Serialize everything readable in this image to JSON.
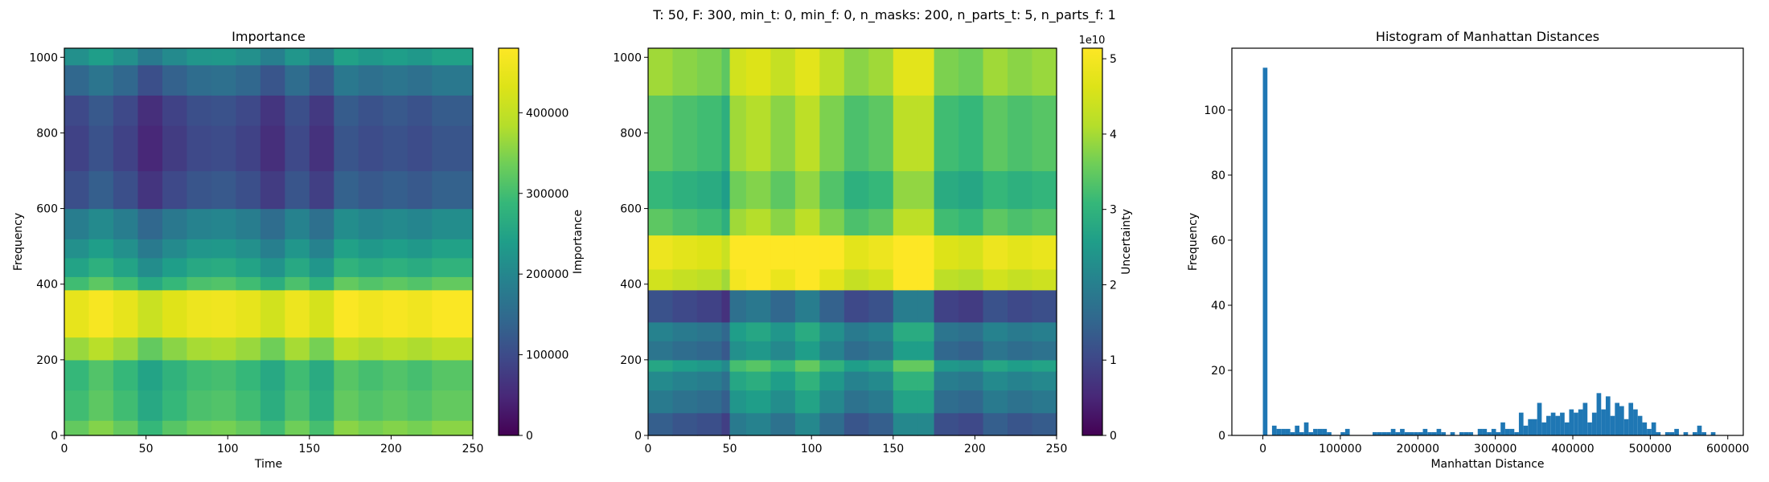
{
  "suptitle": "T: 50, F: 300, min_t: 0, min_f: 0, n_masks: 200, n_parts_t: 5, n_parts_f: 1",
  "chart_data": [
    {
      "type": "heatmap",
      "title": "Importance",
      "xlabel": "Time",
      "ylabel": "Frequency",
      "xlim": [
        0,
        250
      ],
      "ylim": [
        0,
        1024
      ],
      "xticks": [
        0,
        50,
        100,
        150,
        200,
        250
      ],
      "yticks": [
        0,
        200,
        400,
        600,
        800,
        1000
      ],
      "colormap": "viridis",
      "colorbar": {
        "label": "Importance",
        "range": [
          0,
          480000
        ],
        "ticks": [
          0,
          100000,
          200000,
          300000,
          400000
        ],
        "tick_labels": [
          "0",
          "100000",
          "200000",
          "300000",
          "400000"
        ]
      },
      "time_bins": [
        0,
        15,
        30,
        45,
        60,
        75,
        90,
        105,
        120,
        135,
        150,
        165,
        180,
        195,
        210,
        225,
        250
      ],
      "frequency_bands": [
        {
          "f": [
            0,
            40
          ],
          "base": 0.68
        },
        {
          "f": [
            40,
            120
          ],
          "base": 0.62
        },
        {
          "f": [
            120,
            200
          ],
          "base": 0.6
        },
        {
          "f": [
            200,
            260
          ],
          "base": 0.76
        },
        {
          "f": [
            260,
            385
          ],
          "base": 0.93
        },
        {
          "f": [
            385,
            420
          ],
          "base": 0.62
        },
        {
          "f": [
            420,
            470
          ],
          "base": 0.52
        },
        {
          "f": [
            470,
            520
          ],
          "base": 0.45
        },
        {
          "f": [
            520,
            600
          ],
          "base": 0.38
        },
        {
          "f": [
            600,
            700
          ],
          "base": 0.22
        },
        {
          "f": [
            700,
            820
          ],
          "base": 0.18
        },
        {
          "f": [
            820,
            900
          ],
          "base": 0.2
        },
        {
          "f": [
            900,
            980
          ],
          "base": 0.3
        },
        {
          "f": [
            980,
            1024
          ],
          "base": 0.45
        }
      ],
      "time_modulation": [
        0.0,
        0.05,
        0.0,
        -0.08,
        -0.02,
        0.02,
        0.03,
        0.0,
        -0.06,
        0.02,
        -0.05,
        0.06,
        0.03,
        0.05,
        0.03,
        0.06,
        0.03
      ]
    },
    {
      "type": "heatmap",
      "title": "",
      "xlabel": "",
      "ylabel": "",
      "xlim": [
        0,
        250
      ],
      "ylim": [
        0,
        1024
      ],
      "xticks": [
        0,
        50,
        100,
        150,
        200,
        250
      ],
      "yticks": [
        0,
        200,
        400,
        600,
        800,
        1000
      ],
      "colormap": "viridis",
      "colorbar": {
        "label": "Uncertainty",
        "range": [
          0,
          51400000000
        ],
        "ticks": [
          0,
          1,
          2,
          3,
          4,
          5
        ],
        "tick_labels": [
          "0",
          "1",
          "2",
          "3",
          "4",
          "5"
        ],
        "offset_text": "1e10"
      },
      "time_bins": [
        0,
        15,
        30,
        45,
        50,
        60,
        75,
        90,
        105,
        120,
        135,
        150,
        165,
        175,
        190,
        205,
        220,
        235,
        250
      ],
      "frequency_bands": [
        {
          "f": [
            0,
            60
          ],
          "base": 0.22
        },
        {
          "f": [
            60,
            120
          ],
          "base": 0.32
        },
        {
          "f": [
            120,
            170
          ],
          "base": 0.38
        },
        {
          "f": [
            170,
            200
          ],
          "base": 0.48
        },
        {
          "f": [
            200,
            250
          ],
          "base": 0.3
        },
        {
          "f": [
            250,
            300
          ],
          "base": 0.35
        },
        {
          "f": [
            300,
            385
          ],
          "base": 0.18
        },
        {
          "f": [
            385,
            440
          ],
          "base": 0.82
        },
        {
          "f": [
            440,
            530
          ],
          "base": 0.9
        },
        {
          "f": [
            530,
            600
          ],
          "base": 0.62
        },
        {
          "f": [
            600,
            700
          ],
          "base": 0.55
        },
        {
          "f": [
            700,
            900
          ],
          "base": 0.62
        },
        {
          "f": [
            900,
            1024
          ],
          "base": 0.72
        }
      ],
      "time_modulation": [
        0.05,
        0.02,
        0.0,
        -0.05,
        0.15,
        0.18,
        0.12,
        0.2,
        0.1,
        0.02,
        0.05,
        0.2,
        0.2,
        0.0,
        -0.02,
        0.05,
        0.02,
        0.04,
        0.0
      ]
    },
    {
      "type": "bar",
      "title": "Histogram of Manhattan Distances",
      "xlabel": "Manhattan Distance",
      "ylabel": "Frequency",
      "xlim": [
        -40000,
        620000
      ],
      "ylim": [
        0,
        119
      ],
      "xticks": [
        0,
        100000,
        200000,
        300000,
        400000,
        500000,
        600000
      ],
      "yticks": [
        0,
        20,
        40,
        60,
        80,
        100
      ],
      "bin_width": 5900,
      "color": "#1f77b4",
      "bins": [
        {
          "x": 0,
          "count": 113
        },
        {
          "x": 11800,
          "count": 3
        },
        {
          "x": 17700,
          "count": 2
        },
        {
          "x": 23600,
          "count": 2
        },
        {
          "x": 29500,
          "count": 2
        },
        {
          "x": 35400,
          "count": 1
        },
        {
          "x": 41300,
          "count": 3
        },
        {
          "x": 47200,
          "count": 1
        },
        {
          "x": 53100,
          "count": 4
        },
        {
          "x": 59000,
          "count": 1
        },
        {
          "x": 64900,
          "count": 2
        },
        {
          "x": 70800,
          "count": 2
        },
        {
          "x": 76700,
          "count": 2
        },
        {
          "x": 82600,
          "count": 1
        },
        {
          "x": 100300,
          "count": 1
        },
        {
          "x": 106200,
          "count": 2
        },
        {
          "x": 141600,
          "count": 1
        },
        {
          "x": 147500,
          "count": 1
        },
        {
          "x": 153400,
          "count": 1
        },
        {
          "x": 159300,
          "count": 1
        },
        {
          "x": 165200,
          "count": 2
        },
        {
          "x": 171100,
          "count": 1
        },
        {
          "x": 177000,
          "count": 2
        },
        {
          "x": 182900,
          "count": 1
        },
        {
          "x": 188800,
          "count": 1
        },
        {
          "x": 194700,
          "count": 1
        },
        {
          "x": 200600,
          "count": 1
        },
        {
          "x": 206500,
          "count": 2
        },
        {
          "x": 212400,
          "count": 1
        },
        {
          "x": 218300,
          "count": 1
        },
        {
          "x": 224200,
          "count": 2
        },
        {
          "x": 230100,
          "count": 1
        },
        {
          "x": 241900,
          "count": 1
        },
        {
          "x": 253700,
          "count": 1
        },
        {
          "x": 259600,
          "count": 1
        },
        {
          "x": 265500,
          "count": 1
        },
        {
          "x": 277300,
          "count": 2
        },
        {
          "x": 283200,
          "count": 2
        },
        {
          "x": 289100,
          "count": 1
        },
        {
          "x": 295000,
          "count": 2
        },
        {
          "x": 300900,
          "count": 1
        },
        {
          "x": 306800,
          "count": 4
        },
        {
          "x": 312700,
          "count": 2
        },
        {
          "x": 318600,
          "count": 2
        },
        {
          "x": 324500,
          "count": 1
        },
        {
          "x": 330400,
          "count": 7
        },
        {
          "x": 336300,
          "count": 3
        },
        {
          "x": 342200,
          "count": 5
        },
        {
          "x": 348100,
          "count": 5
        },
        {
          "x": 354000,
          "count": 10
        },
        {
          "x": 359900,
          "count": 4
        },
        {
          "x": 365800,
          "count": 6
        },
        {
          "x": 371700,
          "count": 7
        },
        {
          "x": 377600,
          "count": 6
        },
        {
          "x": 383500,
          "count": 7
        },
        {
          "x": 389400,
          "count": 4
        },
        {
          "x": 395300,
          "count": 8
        },
        {
          "x": 401200,
          "count": 7
        },
        {
          "x": 407100,
          "count": 8
        },
        {
          "x": 413000,
          "count": 10
        },
        {
          "x": 418900,
          "count": 4
        },
        {
          "x": 424800,
          "count": 7
        },
        {
          "x": 430700,
          "count": 13
        },
        {
          "x": 436600,
          "count": 8
        },
        {
          "x": 442500,
          "count": 12
        },
        {
          "x": 448400,
          "count": 6
        },
        {
          "x": 454300,
          "count": 10
        },
        {
          "x": 460200,
          "count": 9
        },
        {
          "x": 466100,
          "count": 5
        },
        {
          "x": 472000,
          "count": 10
        },
        {
          "x": 477900,
          "count": 8
        },
        {
          "x": 483800,
          "count": 6
        },
        {
          "x": 489700,
          "count": 4
        },
        {
          "x": 495600,
          "count": 2
        },
        {
          "x": 501500,
          "count": 4
        },
        {
          "x": 507400,
          "count": 1
        },
        {
          "x": 519200,
          "count": 1
        },
        {
          "x": 525100,
          "count": 1
        },
        {
          "x": 531000,
          "count": 2
        },
        {
          "x": 542800,
          "count": 1
        },
        {
          "x": 554600,
          "count": 1
        },
        {
          "x": 560500,
          "count": 3
        },
        {
          "x": 566400,
          "count": 1
        },
        {
          "x": 578200,
          "count": 1
        }
      ]
    }
  ]
}
